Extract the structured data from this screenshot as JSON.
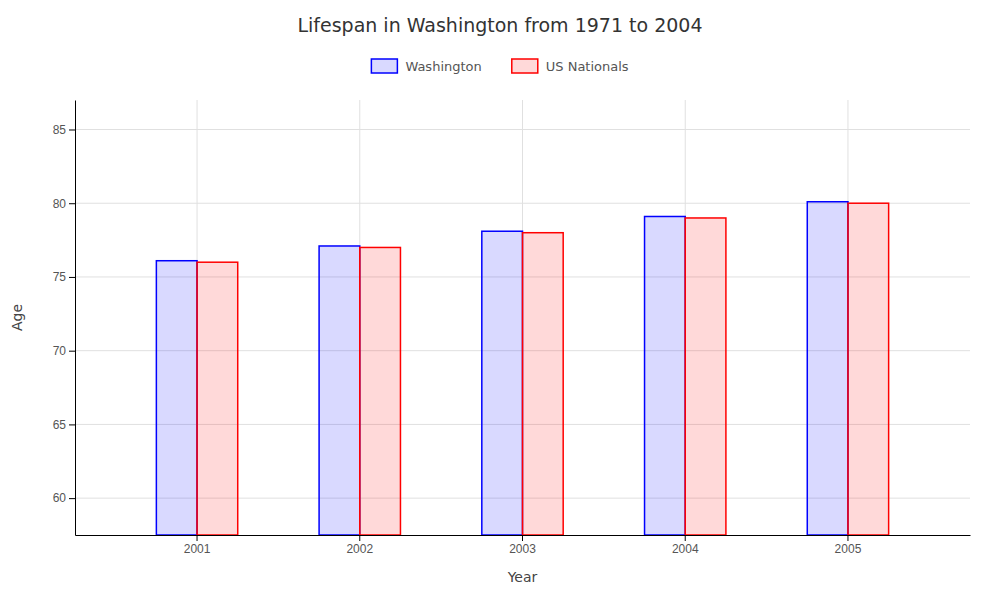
{
  "chart_data": {
    "type": "bar",
    "title": "Lifespan in Washington from 1971 to 2004",
    "xlabel": "Year",
    "ylabel": "Age",
    "categories": [
      "2001",
      "2002",
      "2003",
      "2004",
      "2005"
    ],
    "series": [
      {
        "name": "Washington",
        "color": "#0000ff",
        "values": [
          76.1,
          77.1,
          78.1,
          79.1,
          80.1
        ]
      },
      {
        "name": "US Nationals",
        "color": "#ff0000",
        "values": [
          76.0,
          77.0,
          78.0,
          79.0,
          80.0
        ]
      }
    ],
    "ylim": [
      57.5,
      87
    ],
    "yticks": [
      60,
      65,
      70,
      75,
      80,
      85
    ],
    "grid": true,
    "legend": "top"
  }
}
